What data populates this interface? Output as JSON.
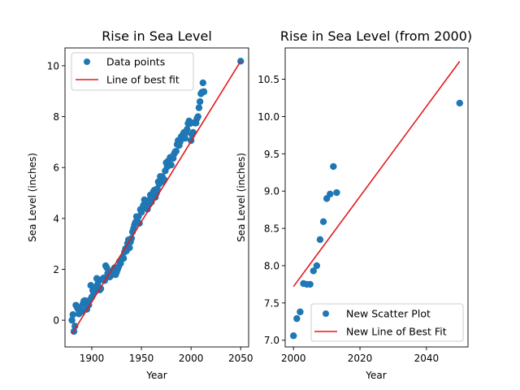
{
  "chart_data": [
    {
      "type": "scatter",
      "title": "Rise in Sea Level",
      "xlabel": "Year",
      "ylabel": "Sea Level (inches)",
      "xlim": [
        1873,
        2058
      ],
      "ylim": [
        -1.05,
        10.7
      ],
      "xticks": [
        1900,
        1950,
        2000,
        2050
      ],
      "yticks": [
        0,
        2,
        4,
        6,
        8,
        10
      ],
      "xtick_labels": [
        "1900",
        "1950",
        "2000",
        "2050"
      ],
      "ytick_labels": [
        "0",
        "2",
        "4",
        "6",
        "8",
        "10"
      ],
      "legend_position": "top-left",
      "grid": false,
      "series": [
        {
          "name": "Data points",
          "kind": "scatter",
          "color": "#1f77b4",
          "x": [
            1880,
            1881,
            1882,
            1883,
            1884,
            1885,
            1886,
            1887,
            1888,
            1889,
            1890,
            1891,
            1892,
            1893,
            1894,
            1895,
            1896,
            1897,
            1898,
            1899,
            1900,
            1901,
            1902,
            1903,
            1904,
            1905,
            1906,
            1907,
            1908,
            1909,
            1910,
            1911,
            1912,
            1913,
            1914,
            1915,
            1916,
            1917,
            1918,
            1919,
            1920,
            1921,
            1922,
            1923,
            1924,
            1925,
            1926,
            1927,
            1928,
            1929,
            1930,
            1931,
            1932,
            1933,
            1934,
            1935,
            1936,
            1937,
            1938,
            1939,
            1940,
            1941,
            1942,
            1943,
            1944,
            1945,
            1946,
            1947,
            1948,
            1949,
            1950,
            1951,
            1952,
            1953,
            1954,
            1955,
            1956,
            1957,
            1958,
            1959,
            1960,
            1961,
            1962,
            1963,
            1964,
            1965,
            1966,
            1967,
            1968,
            1969,
            1970,
            1971,
            1972,
            1973,
            1974,
            1975,
            1976,
            1977,
            1978,
            1979,
            1980,
            1981,
            1982,
            1983,
            1984,
            1985,
            1986,
            1987,
            1988,
            1989,
            1990,
            1991,
            1992,
            1993,
            1994,
            1995,
            1996,
            1997,
            1998,
            1999,
            2000,
            2001,
            2002,
            2003,
            2004,
            2005,
            2006,
            2007,
            2008,
            2009,
            2010,
            2011,
            2012,
            2013,
            2050
          ],
          "y": [
            0.0,
            0.22,
            -0.44,
            -0.23,
            0.59,
            0.53,
            0.44,
            0.25,
            0.3,
            0.4,
            0.34,
            0.63,
            0.75,
            0.77,
            0.72,
            0.43,
            0.74,
            0.6,
            0.79,
            1.37,
            0.91,
            1.17,
            1.06,
            1.13,
            1.3,
            1.64,
            1.42,
            1.28,
            1.19,
            1.24,
            1.6,
            1.61,
            1.66,
            1.56,
            2.14,
            2.07,
            1.84,
            1.91,
            1.7,
            1.74,
            1.89,
            1.83,
            2.0,
            2.06,
            1.79,
            1.89,
            2.0,
            2.1,
            2.31,
            2.23,
            2.4,
            2.47,
            2.43,
            2.68,
            2.81,
            2.73,
            3.02,
            3.16,
            2.85,
            3.08,
            3.22,
            3.47,
            3.6,
            3.75,
            3.85,
            4.07,
            4.03,
            4.07,
            3.81,
            4.35,
            4.24,
            4.39,
            4.52,
            4.73,
            4.69,
            4.67,
            4.36,
            4.7,
            4.56,
            4.92,
            4.64,
            4.85,
            5.05,
            5.11,
            4.83,
            4.98,
            5.17,
            5.44,
            5.36,
            5.65,
            5.49,
            5.64,
            5.45,
            5.52,
            5.87,
            6.19,
            6.03,
            6.26,
            6.11,
            6.4,
            6.1,
            6.38,
            6.36,
            6.54,
            6.62,
            6.64,
            6.91,
            7.06,
            6.87,
            7.01,
            7.21,
            7.21,
            7.32,
            7.38,
            7.15,
            7.37,
            7.5,
            7.73,
            7.83,
            7.73,
            7.06,
            7.29,
            7.38,
            7.76,
            7.75,
            7.75,
            7.93,
            8.0,
            8.35,
            8.59,
            8.9,
            8.96,
            9.33,
            8.98,
            10.18
          ]
        },
        {
          "name": "Line of best fit",
          "kind": "line",
          "color": "#e31a1c",
          "x": [
            1880,
            2050
          ],
          "y": [
            -0.54,
            10.18
          ]
        }
      ]
    },
    {
      "type": "scatter",
      "title": "Rise in Sea Level (from 2000)",
      "xlabel": "Year",
      "ylabel": "Sea Level (inches)",
      "xlim": [
        1997.5,
        2052.5
      ],
      "ylim": [
        6.91,
        10.92
      ],
      "xticks": [
        2000,
        2020,
        2040
      ],
      "yticks": [
        7.0,
        7.5,
        8.0,
        8.5,
        9.0,
        9.5,
        10.0,
        10.5
      ],
      "xtick_labels": [
        "2000",
        "2020",
        "2040"
      ],
      "ytick_labels": [
        "7.0",
        "7.5",
        "8.0",
        "8.5",
        "9.0",
        "9.5",
        "10.0",
        "10.5"
      ],
      "legend_position": "bottom-right",
      "grid": false,
      "series": [
        {
          "name": "New Scatter Plot",
          "kind": "scatter",
          "color": "#1f77b4",
          "x": [
            2000,
            2001,
            2002,
            2003,
            2004,
            2005,
            2006,
            2007,
            2008,
            2009,
            2010,
            2011,
            2012,
            2013,
            2050
          ],
          "y": [
            7.06,
            7.29,
            7.38,
            7.76,
            7.75,
            7.75,
            7.93,
            8.0,
            8.35,
            8.59,
            8.9,
            8.96,
            9.33,
            8.98,
            10.18
          ]
        },
        {
          "name": "New Line of Best Fit",
          "kind": "line",
          "color": "#e31a1c",
          "x": [
            2000,
            2050
          ],
          "y": [
            7.72,
            10.74
          ]
        }
      ]
    }
  ]
}
